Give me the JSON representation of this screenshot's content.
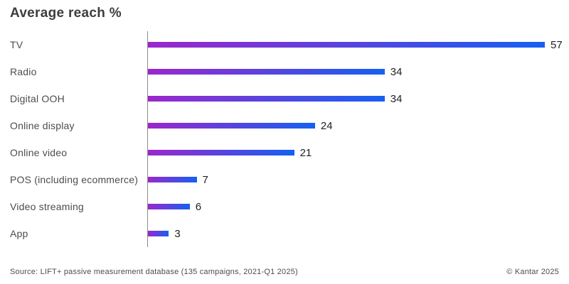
{
  "title": "Average reach %",
  "footer": {
    "source": "Source: LIFT+ passive measurement database (135 campaigns, 2021-Q1 2025)",
    "copyright": "© Kantar 2025"
  },
  "colors": {
    "bar_gradient_start": "#9b27cc",
    "bar_gradient_end": "#1560f2",
    "axis": "#8c8c8c",
    "title_text": "#3d3d3d",
    "label_text": "#4d4d4d",
    "value_text": "#222222",
    "footer_text": "#4d4d4d",
    "background": "#ffffff"
  },
  "chart_data": {
    "type": "bar",
    "orientation": "horizontal",
    "title": "Average reach %",
    "categories": [
      "TV",
      "Radio",
      "Digital OOH",
      "Online display",
      "Online video",
      "POS (including ecommerce)",
      "Video streaming",
      "App"
    ],
    "values": [
      57,
      34,
      34,
      24,
      21,
      7,
      6,
      3
    ],
    "xlabel": "",
    "ylabel": "",
    "xlim": [
      0,
      57
    ],
    "grid": false,
    "legend": false,
    "value_labels": true
  }
}
